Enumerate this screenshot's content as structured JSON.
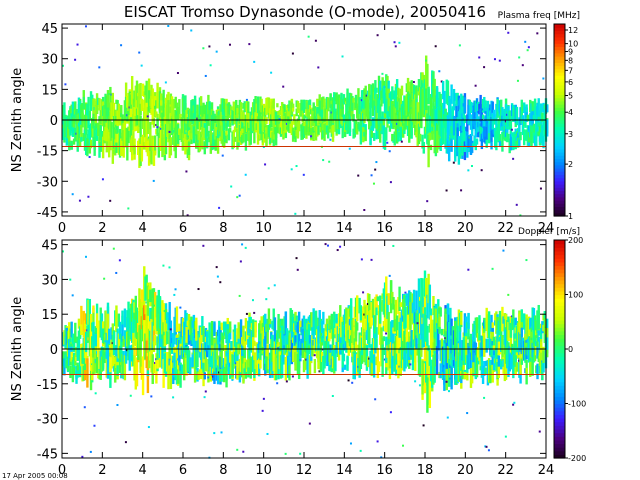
{
  "title": "EISCAT Tromso Dynasonde (O-mode),  20050416",
  "footer_timestamp": "17 Apr 2005 00:08",
  "chart_data": [
    {
      "type": "heatmap",
      "name": "plasma-frequency-panel",
      "title": "EISCAT Tromso Dynasonde (O-mode),  20050416",
      "xlabel": "",
      "ylabel": "NS Zenith angle",
      "xlim": [
        0,
        24
      ],
      "ylim": [
        -47,
        47
      ],
      "x_ticks": [
        0,
        2,
        4,
        6,
        8,
        10,
        12,
        14,
        16,
        18,
        20,
        22,
        24
      ],
      "y_ticks": [
        -45,
        -30,
        -15,
        0,
        15,
        30,
        45
      ],
      "reference_lines": [
        {
          "y": 0,
          "color": "#000000"
        },
        {
          "y": -13,
          "color": "#cc3300"
        }
      ],
      "colorbar": {
        "title": "Plasma freq [MHz]",
        "scale": "log",
        "range": [
          1,
          13
        ],
        "ticks": [
          1,
          2,
          3,
          4,
          5,
          6,
          7,
          8,
          9,
          10,
          12
        ],
        "colors": [
          "#1a001a",
          "#4b0080",
          "#3c1cff",
          "#0088ff",
          "#00d4ff",
          "#00ffb0",
          "#40ff40",
          "#c8ff00",
          "#ffff00",
          "#ffa000",
          "#ff3000",
          "#cc0000"
        ]
      },
      "series": [
        {
          "name": "echo-band",
          "x": [
            0.0,
            0.5,
            1.0,
            1.5,
            2.0,
            2.5,
            3.0,
            3.5,
            4.0,
            4.5,
            5.0,
            5.5,
            6.0,
            6.5,
            7.0,
            7.5,
            8.0,
            8.5,
            9.0,
            9.5,
            10.0,
            10.5,
            11.0,
            11.5,
            12.0,
            12.5,
            13.0,
            13.5,
            14.0,
            14.5,
            15.0,
            15.5,
            16.0,
            16.5,
            17.0,
            17.5,
            18.0,
            18.5,
            19.0,
            19.5,
            20.0,
            20.5,
            21.0,
            21.5,
            22.0,
            22.5,
            23.0,
            23.5,
            24.0
          ],
          "y_center": [
            -2,
            -3,
            -2,
            -1,
            -2,
            -2,
            -1,
            0,
            -1,
            -1,
            -2,
            -2,
            -3,
            -3,
            -3,
            -3,
            -2,
            -2,
            -2,
            -1,
            -1,
            -1,
            0,
            0,
            0,
            1,
            1,
            2,
            2,
            3,
            3,
            4,
            4,
            4,
            5,
            5,
            4,
            2,
            0,
            -2,
            -4,
            -3,
            -2,
            -3,
            -4,
            -3,
            -2,
            -2,
            -2
          ],
          "y_halfwidth": [
            8,
            10,
            12,
            12,
            12,
            14,
            14,
            16,
            18,
            16,
            14,
            12,
            12,
            11,
            11,
            10,
            9,
            9,
            9,
            9,
            9,
            9,
            8,
            8,
            8,
            8,
            8,
            9,
            9,
            10,
            11,
            13,
            14,
            13,
            12,
            12,
            20,
            14,
            14,
            14,
            12,
            10,
            10,
            10,
            10,
            9,
            9,
            9,
            9
          ],
          "value_mhz": [
            3.5,
            3.6,
            3.8,
            4.0,
            4.2,
            4.5,
            4.6,
            4.8,
            4.9,
            4.8,
            4.6,
            4.4,
            4.3,
            4.2,
            4.1,
            4.1,
            4.2,
            4.2,
            4.2,
            4.3,
            4.3,
            4.4,
            4.4,
            4.3,
            4.2,
            4.2,
            4.1,
            4.1,
            4.0,
            4.0,
            3.8,
            3.6,
            3.6,
            3.8,
            4.0,
            4.2,
            4.0,
            3.6,
            3.2,
            2.8,
            2.6,
            2.5,
            2.7,
            2.8,
            3.0,
            3.0,
            3.1,
            3.2,
            3.2
          ]
        }
      ]
    },
    {
      "type": "heatmap",
      "name": "doppler-panel",
      "title": "",
      "xlabel": "",
      "ylabel": "NS Zenith angle",
      "xlim": [
        0,
        24
      ],
      "ylim": [
        -47,
        47
      ],
      "x_ticks": [
        0,
        2,
        4,
        6,
        8,
        10,
        12,
        14,
        16,
        18,
        20,
        22,
        24
      ],
      "y_ticks": [
        -45,
        -30,
        -15,
        0,
        15,
        30,
        45
      ],
      "reference_lines": [
        {
          "y": 0,
          "color": "#000000"
        },
        {
          "y": -11,
          "color": "#cc3300"
        }
      ],
      "colorbar": {
        "title": "Doppler [m/s]",
        "scale": "linear",
        "range": [
          -200,
          200
        ],
        "ticks": [
          -200,
          -100,
          0,
          100,
          200
        ],
        "colors": [
          "#1a001a",
          "#4b0080",
          "#3c1cff",
          "#0088ff",
          "#00d4ff",
          "#00ffb0",
          "#40ff40",
          "#c8ff00",
          "#ffff00",
          "#ffa000",
          "#ff3000",
          "#cc0000"
        ]
      },
      "series": [
        {
          "name": "echo-band",
          "x": [
            0.0,
            0.5,
            1.0,
            1.5,
            2.0,
            2.5,
            3.0,
            3.5,
            4.0,
            4.5,
            5.0,
            5.5,
            6.0,
            6.5,
            7.0,
            7.5,
            8.0,
            8.5,
            9.0,
            9.5,
            10.0,
            10.5,
            11.0,
            11.5,
            12.0,
            12.5,
            13.0,
            13.5,
            14.0,
            14.5,
            15.0,
            15.5,
            16.0,
            16.5,
            17.0,
            17.5,
            18.0,
            18.5,
            19.0,
            19.5,
            20.0,
            20.5,
            21.0,
            21.5,
            22.0,
            22.5,
            23.0,
            23.5,
            24.0
          ],
          "y_center": [
            -1,
            -1,
            2,
            3,
            2,
            1,
            1,
            4,
            8,
            6,
            3,
            1,
            0,
            -1,
            -1,
            -1,
            -1,
            -1,
            0,
            1,
            2,
            2,
            2,
            2,
            2,
            2,
            3,
            3,
            4,
            5,
            6,
            7,
            8,
            8,
            9,
            9,
            6,
            3,
            1,
            0,
            0,
            0,
            1,
            1,
            1,
            1,
            2,
            2,
            2
          ],
          "y_halfwidth": [
            8,
            10,
            14,
            15,
            14,
            13,
            13,
            16,
            20,
            18,
            15,
            13,
            12,
            12,
            11,
            11,
            11,
            11,
            11,
            11,
            11,
            11,
            11,
            11,
            11,
            11,
            11,
            11,
            12,
            13,
            14,
            15,
            16,
            16,
            15,
            15,
            25,
            16,
            14,
            14,
            13,
            12,
            12,
            12,
            12,
            12,
            12,
            12,
            12
          ],
          "value_ms": [
            -10,
            5,
            60,
            40,
            20,
            10,
            5,
            30,
            60,
            40,
            10,
            0,
            -5,
            -5,
            -10,
            -10,
            -5,
            0,
            0,
            5,
            0,
            -5,
            -10,
            -10,
            -5,
            0,
            5,
            10,
            10,
            15,
            20,
            25,
            30,
            20,
            10,
            0,
            40,
            -20,
            -30,
            -20,
            -10,
            0,
            -10,
            0,
            10,
            0,
            -5,
            0,
            0
          ]
        }
      ]
    }
  ]
}
